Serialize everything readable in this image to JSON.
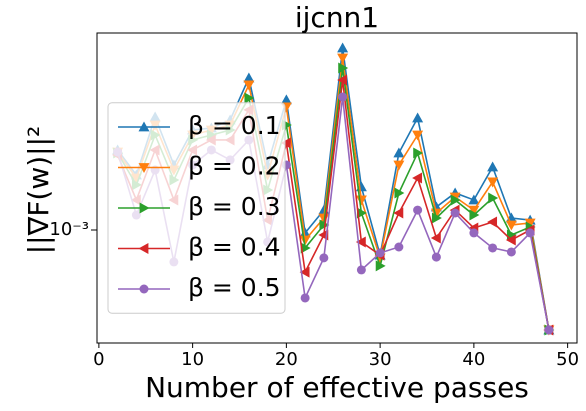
{
  "chart_data": {
    "type": "line",
    "title": "ijcnn1",
    "x_label": "Number of effective passes",
    "y_label": "||∇F(w)||²",
    "x": [
      2,
      4,
      6,
      8,
      10,
      12,
      14,
      16,
      18,
      20,
      22,
      24,
      26,
      28,
      30,
      32,
      34,
      36,
      38,
      40,
      42,
      44,
      46,
      48
    ],
    "series": [
      {
        "name": "β = 0.1",
        "color": "#1f77b4",
        "marker": "triangle-up",
        "values": [
          0.0016,
          0.001381,
          0.001942,
          0.001465,
          0.001799,
          0.00182,
          0.001908,
          0.002442,
          0.001465,
          0.002147,
          0.000983,
          0.001124,
          0.002912,
          0.001288,
          0.000863,
          0.001572,
          0.001931,
          0.001145,
          0.001243,
          0.001193,
          0.001448,
          0.001073,
          0.00106,
          0.000556
        ]
      },
      {
        "name": "β = 0.2",
        "color": "#ff7f0e",
        "marker": "triangle-down",
        "values": [
          0.001581,
          0.001357,
          0.001853,
          0.001422,
          0.001747,
          0.001799,
          0.001853,
          0.002344,
          0.001381,
          0.00206,
          0.000943,
          0.001073,
          0.002746,
          0.001193,
          0.000849,
          0.001465,
          0.001747,
          0.001105,
          0.001214,
          0.001124,
          0.001326,
          0.00103,
          0.001042,
          0.000556
        ]
      },
      {
        "name": "β = 0.3",
        "color": "#2ca02c",
        "marker": "triangle-right",
        "values": [
          0.001572,
          0.001303,
          0.001747,
          0.001341,
          0.001697,
          0.001747,
          0.001799,
          0.002171,
          0.001265,
          0.001853,
          0.0009,
          0.00103,
          0.00259,
          0.001105,
          0.00081,
          0.001243,
          0.001572,
          0.001073,
          0.001193,
          0.001092,
          0.001207,
          0.000971,
          0.001018,
          0.000556
        ]
      },
      {
        "name": "β = 0.4",
        "color": "#d62728",
        "marker": "triangle-left",
        "values": [
          0.001553,
          0.001193,
          0.0016,
          0.001193,
          0.0016,
          0.001697,
          0.001697,
          0.002024,
          0.00106,
          0.001667,
          0.000781,
          0.000971,
          0.002413,
          0.000932,
          0.000863,
          0.001105,
          0.001357,
          0.000954,
          0.001124,
          0.001012,
          0.001048,
          0.000943,
          0.001,
          0.000556
        ]
      },
      {
        "name": "β = 0.5",
        "color": "#9467bd",
        "marker": "circle",
        "values": [
          0.001581,
          0.001092,
          0.001422,
          0.000829,
          0.001465,
          0.0016,
          0.001509,
          0.001697,
          0.000932,
          0.001465,
          0.000671,
          0.000849,
          0.002184,
          0.000791,
          0.000874,
          0.000905,
          0.001124,
          0.000853,
          0.001105,
          0.000983,
          0.0009,
          0.000879,
          0.000983,
          0.000556
        ]
      }
    ],
    "xlim": [
      -0.2,
      51
    ],
    "xticks": [
      0,
      10,
      20,
      30,
      40,
      50
    ],
    "ylim": [
      0.000515,
      0.00318
    ],
    "yticks": [
      {
        "value": 0.001,
        "label": "10⁻³"
      }
    ],
    "log_y": true,
    "legend": "center left"
  }
}
